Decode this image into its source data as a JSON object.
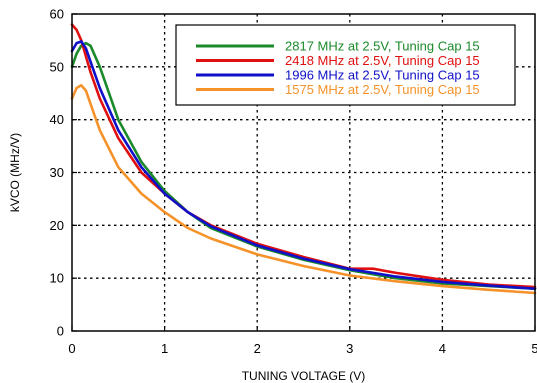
{
  "chart_data": {
    "type": "line",
    "title": "",
    "xlabel": "TUNING VOLTAGE (V)",
    "ylabel": "kVCO (MHz/V)",
    "xlim": [
      0,
      5
    ],
    "ylim": [
      0,
      60
    ],
    "xticks": [
      0,
      1,
      2,
      3,
      4,
      5
    ],
    "yticks": [
      0,
      10,
      20,
      30,
      40,
      50,
      60
    ],
    "grid": true,
    "legend_position": "top-right",
    "series": [
      {
        "name": "2817 MHz at 2.5V, Tuning Cap 15",
        "color": "#1a8a2a",
        "x": [
          0,
          0.05,
          0.1,
          0.15,
          0.2,
          0.3,
          0.5,
          0.75,
          1.0,
          1.25,
          1.5,
          2.0,
          2.5,
          3.0,
          3.5,
          4.0,
          4.5,
          5.0
        ],
        "y": [
          50,
          52.5,
          54,
          54.5,
          54,
          50,
          40,
          32,
          26.5,
          22.5,
          19.5,
          16,
          13.5,
          11.5,
          10,
          9,
          8.5,
          8
        ]
      },
      {
        "name": "2418 MHz at 2.5V, Tuning Cap 15",
        "color": "#e01010",
        "x": [
          0,
          0.05,
          0.1,
          0.15,
          0.2,
          0.3,
          0.5,
          0.75,
          1.0,
          1.25,
          1.5,
          2.0,
          2.5,
          3.0,
          3.25,
          3.5,
          4.0,
          4.5,
          5.0
        ],
        "y": [
          58,
          57,
          55,
          52,
          49,
          44,
          36.5,
          30,
          26,
          22.5,
          20,
          16.5,
          14,
          11.8,
          11.8,
          11,
          9.7,
          8.8,
          8.3
        ]
      },
      {
        "name": "1996 MHz at 2.5V, Tuning Cap 15",
        "color": "#1010c8",
        "x": [
          0,
          0.05,
          0.1,
          0.15,
          0.2,
          0.3,
          0.5,
          0.75,
          1.0,
          1.25,
          1.5,
          2.0,
          2.5,
          3.0,
          3.5,
          4.0,
          4.5,
          5.0
        ],
        "y": [
          53,
          54.5,
          54.8,
          53.5,
          51,
          46,
          38,
          31,
          26,
          22.5,
          19.8,
          16.2,
          13.7,
          11.7,
          10.3,
          9.3,
          8.6,
          8
        ]
      },
      {
        "name": "1575 MHz at 2.5V, Tuning Cap 15",
        "color": "#f5922a",
        "x": [
          0,
          0.05,
          0.1,
          0.15,
          0.2,
          0.3,
          0.5,
          0.75,
          1.0,
          1.25,
          1.5,
          2.0,
          2.5,
          3.0,
          3.5,
          4.0,
          4.5,
          5.0
        ],
        "y": [
          44,
          46,
          46.5,
          45.5,
          43,
          38,
          31,
          26,
          22.5,
          19.5,
          17.5,
          14.5,
          12.3,
          10.5,
          9.4,
          8.5,
          7.8,
          7.2
        ]
      }
    ]
  }
}
